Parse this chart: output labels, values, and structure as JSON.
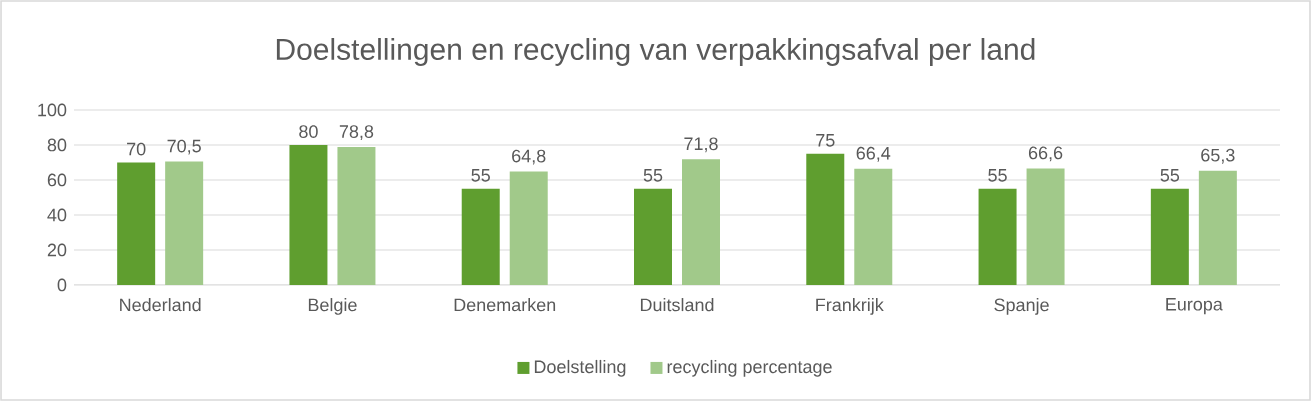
{
  "chart_data": {
    "type": "bar",
    "title": "Doelstellingen en recycling van verpakkingsafval per land",
    "categories": [
      "Nederland",
      "Belgie",
      "Denemarken",
      "Duitsland",
      "Frankrijk",
      "Spanje",
      "Europa"
    ],
    "series": [
      {
        "name": "Doelstelling",
        "color": "#5f9e2f",
        "values": [
          70,
          80,
          55,
          55,
          75,
          55,
          55
        ],
        "value_labels": [
          "70",
          "80",
          "55",
          "55",
          "75",
          "55",
          "55"
        ]
      },
      {
        "name": "recycling percentage",
        "color": "#a1c98a",
        "values": [
          70.5,
          78.8,
          64.8,
          71.8,
          66.4,
          66.6,
          65.3
        ],
        "value_labels": [
          "70,5",
          "78,8",
          "64,8",
          "71,8",
          "66,4",
          "66,6",
          "65,3"
        ]
      }
    ],
    "ylim": [
      0,
      100
    ],
    "yticks": [
      0,
      20,
      40,
      60,
      80,
      100
    ],
    "grid": "y",
    "legend": "bottom"
  }
}
